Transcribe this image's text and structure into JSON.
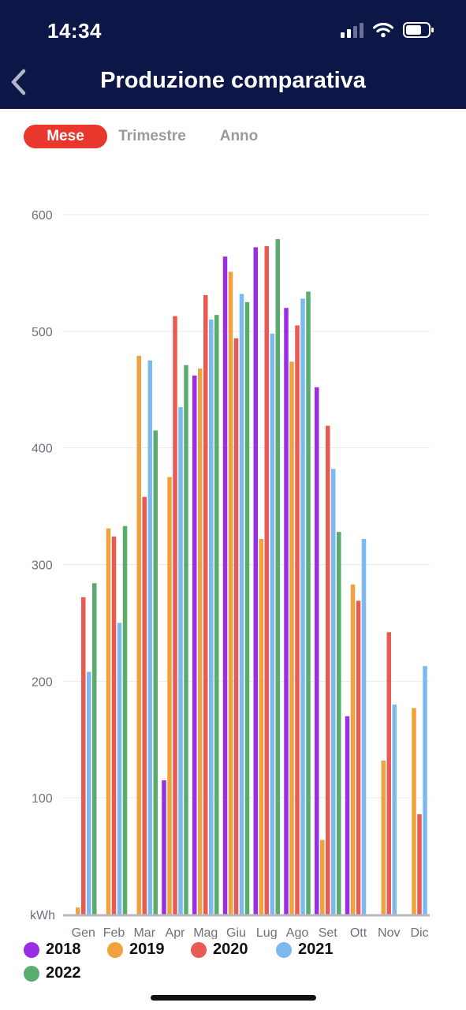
{
  "status_bar": {
    "time": "14:34",
    "battery_icon": "battery-icon",
    "wifi_icon": "wifi-icon",
    "signal_icon": "signal-icon"
  },
  "nav": {
    "title": "Produzione comparativa",
    "back_icon": "chevron-left-icon"
  },
  "tabs": [
    {
      "label": "Mese",
      "active": true
    },
    {
      "label": "Trimestre",
      "active": false
    },
    {
      "label": "Anno",
      "active": false
    }
  ],
  "colors": {
    "header": "#0c1747",
    "active_tab": "#e8372c"
  },
  "chart_data": {
    "type": "bar",
    "ylabel": "kWh",
    "ylim": [
      0,
      600
    ],
    "yticks": [
      100,
      200,
      300,
      400,
      500,
      600
    ],
    "grid": true,
    "legend_position": "bottom",
    "categories": [
      "Gen",
      "Feb",
      "Mar",
      "Apr",
      "Mag",
      "Giu",
      "Lug",
      "Ago",
      "Set",
      "Ott",
      "Nov",
      "Dic"
    ],
    "series": [
      {
        "name": "2018",
        "color": "#9b2ee4",
        "values": [
          0,
          0,
          0,
          115,
          462,
          564,
          572,
          520,
          452,
          170,
          0,
          0
        ]
      },
      {
        "name": "2019",
        "color": "#f0a23c",
        "values": [
          6,
          331,
          479,
          375,
          468,
          551,
          322,
          474,
          64,
          283,
          132,
          177
        ]
      },
      {
        "name": "2020",
        "color": "#e85a52",
        "values": [
          272,
          324,
          358,
          513,
          531,
          494,
          573,
          505,
          419,
          269,
          242,
          86
        ]
      },
      {
        "name": "2021",
        "color": "#7db8ee",
        "values": [
          208,
          250,
          475,
          435,
          510,
          532,
          498,
          528,
          382,
          322,
          180,
          213
        ]
      },
      {
        "name": "2022",
        "color": "#5aab6e",
        "values": [
          284,
          333,
          415,
          471,
          514,
          525,
          579,
          534,
          328,
          0,
          0,
          0
        ]
      }
    ]
  }
}
